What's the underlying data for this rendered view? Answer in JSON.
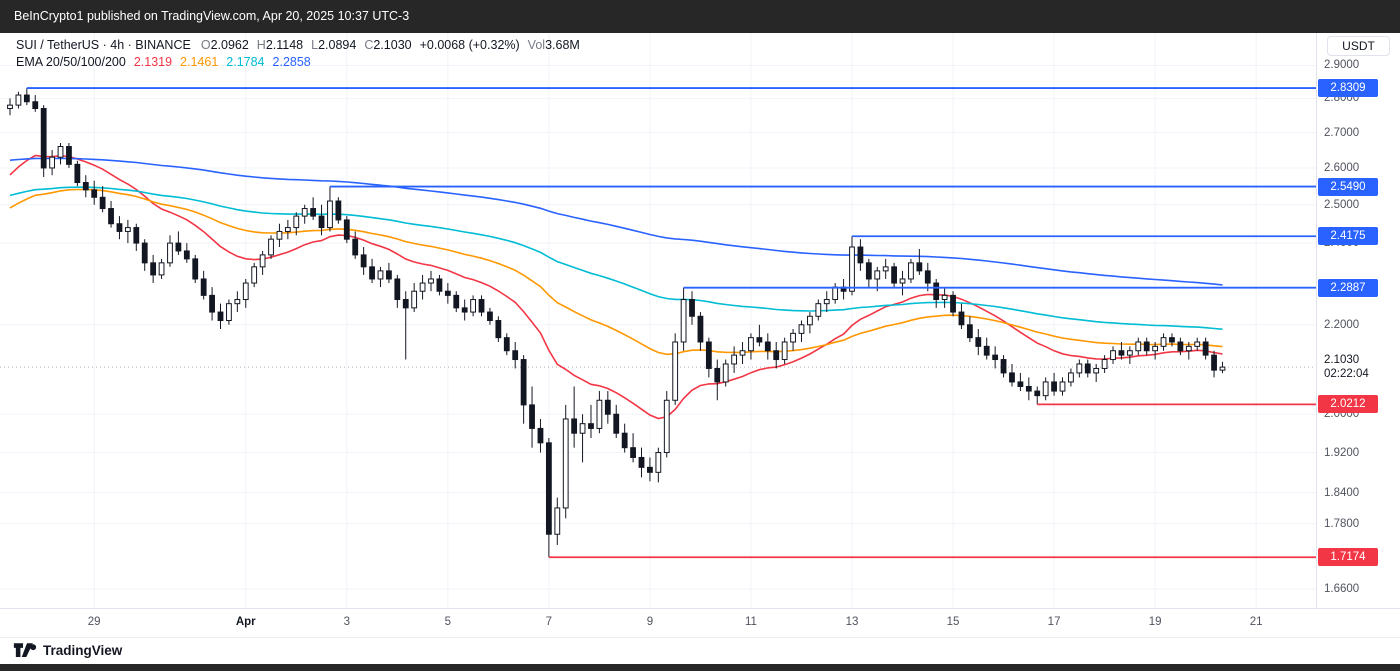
{
  "publish_bar": {
    "text": "BeInCrypto1 published on TradingView.com, Apr 20, 2025 10:37 UTC-3"
  },
  "legend": {
    "symbol": "SUI / TetherUS · 4h · BINANCE",
    "ohlc": {
      "o_label": "O",
      "o": "2.0962",
      "h_label": "H",
      "h": "2.1148",
      "l_label": "L",
      "l": "2.0894",
      "c_label": "C",
      "c": "2.1030",
      "change": "+0.0068 (+0.32%)",
      "vol_label": "Vol",
      "vol": "3.68M"
    },
    "ema": {
      "label": "EMA 20/50/100/200",
      "values": [
        {
          "text": "2.1319",
          "color": "#f23645"
        },
        {
          "text": "2.1461",
          "color": "#ff9800"
        },
        {
          "text": "2.1784",
          "color": "#00bcd4"
        },
        {
          "text": "2.2858",
          "color": "#2962ff"
        }
      ]
    }
  },
  "price_axis": {
    "currency": "USDT"
  },
  "footer": {
    "brand": "TradingView"
  },
  "chart_data": {
    "type": "candlestick",
    "title": "SUI / TetherUS 4h BINANCE",
    "scale": "log",
    "ylim": [
      1.627,
      3.002
    ],
    "interval": "4h",
    "price_ticks": [
      {
        "price": 2.9,
        "label": "2.9000"
      },
      {
        "price": 2.8,
        "label": "2.8000"
      },
      {
        "price": 2.7,
        "label": "2.7000"
      },
      {
        "price": 2.6,
        "label": "2.6000"
      },
      {
        "price": 2.5,
        "label": "2.5000"
      },
      {
        "price": 2.4,
        "label": "2.4000"
      },
      {
        "price": 2.2,
        "label": "2.2000"
      },
      {
        "price": 2.0,
        "label": "2.0000"
      },
      {
        "price": 1.92,
        "label": "1.9200"
      },
      {
        "price": 1.84,
        "label": "1.8400"
      },
      {
        "price": 1.78,
        "label": "1.7800"
      },
      {
        "price": 1.66,
        "label": "1.6600"
      }
    ],
    "time_ticks": [
      {
        "label": "29",
        "index": 10
      },
      {
        "label": "Apr",
        "index": 28,
        "bold": true
      },
      {
        "label": "3",
        "index": 40
      },
      {
        "label": "5",
        "index": 52
      },
      {
        "label": "7",
        "index": 64
      },
      {
        "label": "9",
        "index": 76
      },
      {
        "label": "11",
        "index": 88
      },
      {
        "label": "13",
        "index": 100
      },
      {
        "label": "15",
        "index": 112
      },
      {
        "label": "17",
        "index": 124
      },
      {
        "label": "19",
        "index": 136
      },
      {
        "label": "21",
        "index": 148
      }
    ],
    "levels": [
      {
        "price": 2.8309,
        "label": "2.8309",
        "index": 2,
        "color": "#2962ff"
      },
      {
        "price": 2.549,
        "label": "2.5490",
        "index": 38,
        "color": "#2962ff"
      },
      {
        "price": 2.4175,
        "label": "2.4175",
        "index": 100,
        "color": "#2962ff"
      },
      {
        "price": 2.2887,
        "label": "2.2887",
        "index": 80,
        "color": "#2962ff"
      },
      {
        "price": 2.0212,
        "label": "2.0212",
        "index": 122,
        "color": "#f23645"
      },
      {
        "price": 1.7174,
        "label": "1.7174",
        "index": 64,
        "color": "#f23645"
      }
    ],
    "emas": [
      {
        "period": 20,
        "color": "#f23645",
        "seed": 2.56,
        "display": "2.1319"
      },
      {
        "period": 50,
        "color": "#ff9800",
        "seed": 2.48,
        "display": "2.1461"
      },
      {
        "period": 100,
        "color": "#00bcd4",
        "seed": 2.52,
        "display": "2.1784"
      },
      {
        "period": 200,
        "color": "#2962ff",
        "seed": 2.62,
        "display": "2.2858"
      }
    ],
    "current": {
      "price": 2.103,
      "label": "2.1030",
      "countdown": "02:22:04"
    },
    "ohlc": [
      [
        2.77,
        2.8,
        2.75,
        2.78
      ],
      [
        2.78,
        2.82,
        2.77,
        2.81
      ],
      [
        2.81,
        2.8309,
        2.78,
        2.79
      ],
      [
        2.79,
        2.81,
        2.76,
        2.77
      ],
      [
        2.77,
        2.78,
        2.575,
        2.6
      ],
      [
        2.6,
        2.65,
        2.58,
        2.63
      ],
      [
        2.63,
        2.67,
        2.61,
        2.66
      ],
      [
        2.66,
        2.67,
        2.6,
        2.61
      ],
      [
        2.61,
        2.62,
        2.55,
        2.56
      ],
      [
        2.56,
        2.58,
        2.52,
        2.54
      ],
      [
        2.54,
        2.565,
        2.5,
        2.52
      ],
      [
        2.52,
        2.55,
        2.48,
        2.49
      ],
      [
        2.49,
        2.51,
        2.44,
        2.45
      ],
      [
        2.45,
        2.47,
        2.41,
        2.43
      ],
      [
        2.43,
        2.46,
        2.4,
        2.44
      ],
      [
        2.44,
        2.45,
        2.38,
        2.4
      ],
      [
        2.4,
        2.41,
        2.33,
        2.35
      ],
      [
        2.35,
        2.37,
        2.3,
        2.32
      ],
      [
        2.32,
        2.36,
        2.31,
        2.35
      ],
      [
        2.35,
        2.42,
        2.34,
        2.4
      ],
      [
        2.4,
        2.43,
        2.37,
        2.38
      ],
      [
        2.38,
        2.4,
        2.35,
        2.36
      ],
      [
        2.36,
        2.37,
        2.3,
        2.31
      ],
      [
        2.31,
        2.33,
        2.26,
        2.27
      ],
      [
        2.27,
        2.29,
        2.21,
        2.23
      ],
      [
        2.23,
        2.25,
        2.19,
        2.21
      ],
      [
        2.21,
        2.26,
        2.2,
        2.25
      ],
      [
        2.25,
        2.28,
        2.23,
        2.26
      ],
      [
        2.26,
        2.31,
        2.24,
        2.3
      ],
      [
        2.3,
        2.35,
        2.29,
        2.34
      ],
      [
        2.34,
        2.38,
        2.32,
        2.37
      ],
      [
        2.37,
        2.42,
        2.36,
        2.41
      ],
      [
        2.41,
        2.45,
        2.39,
        2.43
      ],
      [
        2.43,
        2.46,
        2.41,
        2.44
      ],
      [
        2.44,
        2.48,
        2.42,
        2.47
      ],
      [
        2.47,
        2.5,
        2.45,
        2.49
      ],
      [
        2.49,
        2.52,
        2.46,
        2.47
      ],
      [
        2.47,
        2.5,
        2.42,
        2.44
      ],
      [
        2.44,
        2.549,
        2.43,
        2.51
      ],
      [
        2.51,
        2.52,
        2.45,
        2.46
      ],
      [
        2.46,
        2.47,
        2.4,
        2.41
      ],
      [
        2.41,
        2.43,
        2.36,
        2.37
      ],
      [
        2.37,
        2.39,
        2.32,
        2.34
      ],
      [
        2.34,
        2.36,
        2.3,
        2.31
      ],
      [
        2.31,
        2.34,
        2.29,
        2.33
      ],
      [
        2.33,
        2.35,
        2.3,
        2.31
      ],
      [
        2.31,
        2.32,
        2.24,
        2.26
      ],
      [
        2.26,
        2.28,
        2.12,
        2.24
      ],
      [
        2.24,
        2.3,
        2.23,
        2.28
      ],
      [
        2.28,
        2.32,
        2.26,
        2.3
      ],
      [
        2.3,
        2.33,
        2.28,
        2.31
      ],
      [
        2.31,
        2.32,
        2.27,
        2.28
      ],
      [
        2.28,
        2.3,
        2.25,
        2.27
      ],
      [
        2.27,
        2.28,
        2.23,
        2.24
      ],
      [
        2.24,
        2.26,
        2.21,
        2.23
      ],
      [
        2.23,
        2.27,
        2.22,
        2.26
      ],
      [
        2.26,
        2.27,
        2.22,
        2.23
      ],
      [
        2.23,
        2.24,
        2.2,
        2.21
      ],
      [
        2.21,
        2.22,
        2.16,
        2.17
      ],
      [
        2.17,
        2.18,
        2.13,
        2.14
      ],
      [
        2.14,
        2.16,
        2.1,
        2.12
      ],
      [
        2.12,
        2.13,
        1.98,
        2.02
      ],
      [
        2.02,
        2.06,
        1.93,
        1.97
      ],
      [
        1.97,
        1.99,
        1.92,
        1.94
      ],
      [
        1.94,
        1.95,
        1.7174,
        1.76
      ],
      [
        1.76,
        1.83,
        1.74,
        1.81
      ],
      [
        1.81,
        2.02,
        1.79,
        1.99
      ],
      [
        1.99,
        2.06,
        1.93,
        1.96
      ],
      [
        1.96,
        2.0,
        1.9,
        1.98
      ],
      [
        1.98,
        2.02,
        1.95,
        1.97
      ],
      [
        1.97,
        2.05,
        1.96,
        2.03
      ],
      [
        2.03,
        2.05,
        1.98,
        2.0
      ],
      [
        2.0,
        2.02,
        1.95,
        1.96
      ],
      [
        1.96,
        1.98,
        1.92,
        1.93
      ],
      [
        1.93,
        1.96,
        1.9,
        1.91
      ],
      [
        1.91,
        1.93,
        1.87,
        1.89
      ],
      [
        1.89,
        1.91,
        1.862,
        1.88
      ],
      [
        1.88,
        1.93,
        1.86,
        1.92
      ],
      [
        1.92,
        2.05,
        1.91,
        2.03
      ],
      [
        2.03,
        2.18,
        2.02,
        2.16
      ],
      [
        2.16,
        2.2887,
        2.14,
        2.26
      ],
      [
        2.26,
        2.28,
        2.2,
        2.22
      ],
      [
        2.22,
        2.23,
        2.14,
        2.16
      ],
      [
        2.16,
        2.17,
        2.08,
        2.1
      ],
      [
        2.1,
        2.12,
        2.03,
        2.07
      ],
      [
        2.07,
        2.12,
        2.06,
        2.11
      ],
      [
        2.11,
        2.15,
        2.09,
        2.13
      ],
      [
        2.13,
        2.16,
        2.11,
        2.14
      ],
      [
        2.14,
        2.18,
        2.12,
        2.17
      ],
      [
        2.17,
        2.2,
        2.15,
        2.16
      ],
      [
        2.16,
        2.18,
        2.12,
        2.14
      ],
      [
        2.14,
        2.16,
        2.1,
        2.12
      ],
      [
        2.12,
        2.17,
        2.11,
        2.16
      ],
      [
        2.16,
        2.19,
        2.14,
        2.18
      ],
      [
        2.18,
        2.21,
        2.16,
        2.2
      ],
      [
        2.2,
        2.23,
        2.18,
        2.22
      ],
      [
        2.22,
        2.26,
        2.21,
        2.25
      ],
      [
        2.25,
        2.28,
        2.23,
        2.26
      ],
      [
        2.26,
        2.3,
        2.25,
        2.29
      ],
      [
        2.29,
        2.31,
        2.26,
        2.28
      ],
      [
        2.28,
        2.4175,
        2.27,
        2.39
      ],
      [
        2.39,
        2.41,
        2.33,
        2.35
      ],
      [
        2.35,
        2.36,
        2.29,
        2.31
      ],
      [
        2.31,
        2.34,
        2.28,
        2.33
      ],
      [
        2.33,
        2.36,
        2.31,
        2.34
      ],
      [
        2.34,
        2.35,
        2.29,
        2.3
      ],
      [
        2.3,
        2.33,
        2.27,
        2.31
      ],
      [
        2.31,
        2.36,
        2.3,
        2.35
      ],
      [
        2.35,
        2.385,
        2.32,
        2.33
      ],
      [
        2.33,
        2.35,
        2.28,
        2.3
      ],
      [
        2.3,
        2.31,
        2.24,
        2.26
      ],
      [
        2.26,
        2.29,
        2.24,
        2.27
      ],
      [
        2.27,
        2.28,
        2.22,
        2.23
      ],
      [
        2.23,
        2.25,
        2.19,
        2.2
      ],
      [
        2.2,
        2.22,
        2.16,
        2.17
      ],
      [
        2.17,
        2.19,
        2.13,
        2.15
      ],
      [
        2.15,
        2.17,
        2.12,
        2.13
      ],
      [
        2.13,
        2.15,
        2.1,
        2.12
      ],
      [
        2.12,
        2.13,
        2.08,
        2.09
      ],
      [
        2.09,
        2.11,
        2.06,
        2.07
      ],
      [
        2.07,
        2.09,
        2.05,
        2.06
      ],
      [
        2.06,
        2.08,
        2.03,
        2.05
      ],
      [
        2.05,
        2.06,
        2.0212,
        2.04
      ],
      [
        2.04,
        2.08,
        2.03,
        2.07
      ],
      [
        2.07,
        2.09,
        2.04,
        2.05
      ],
      [
        2.05,
        2.08,
        2.04,
        2.07
      ],
      [
        2.07,
        2.1,
        2.06,
        2.09
      ],
      [
        2.09,
        2.12,
        2.08,
        2.11
      ],
      [
        2.11,
        2.12,
        2.08,
        2.09
      ],
      [
        2.09,
        2.11,
        2.07,
        2.1
      ],
      [
        2.1,
        2.13,
        2.09,
        2.12
      ],
      [
        2.12,
        2.15,
        2.11,
        2.14
      ],
      [
        2.14,
        2.16,
        2.12,
        2.13
      ],
      [
        2.13,
        2.15,
        2.11,
        2.14
      ],
      [
        2.14,
        2.17,
        2.13,
        2.16
      ],
      [
        2.16,
        2.17,
        2.13,
        2.14
      ],
      [
        2.14,
        2.16,
        2.12,
        2.15
      ],
      [
        2.15,
        2.18,
        2.14,
        2.17
      ],
      [
        2.17,
        2.18,
        2.15,
        2.16
      ],
      [
        2.16,
        2.17,
        2.13,
        2.14
      ],
      [
        2.14,
        2.16,
        2.12,
        2.15
      ],
      [
        2.15,
        2.17,
        2.14,
        2.16
      ],
      [
        2.16,
        2.17,
        2.12,
        2.13
      ],
      [
        2.13,
        2.14,
        2.08,
        2.0962
      ],
      [
        2.0962,
        2.1148,
        2.0894,
        2.103
      ]
    ]
  }
}
